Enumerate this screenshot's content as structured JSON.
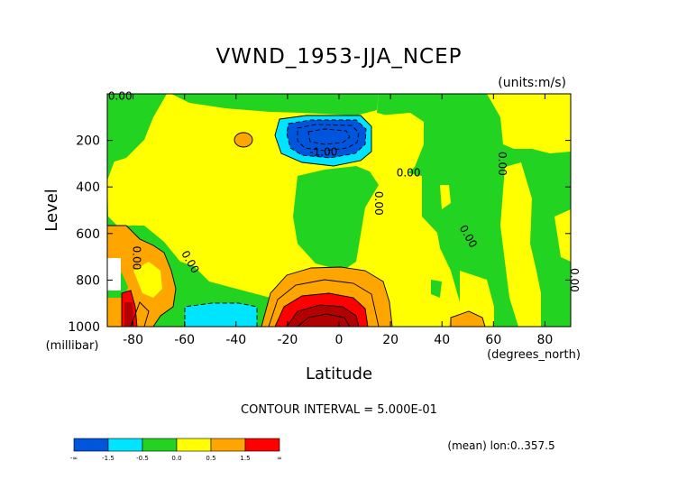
{
  "chart_data": {
    "type": "heatmap",
    "title": "VWND_1953-JJA_NCEP",
    "units_label": "(units:m/s)",
    "xlabel": "Latitude",
    "x_units_label": "(degrees_north)",
    "ylabel": "Level",
    "y_units_label": "(millibar)",
    "xlim": [
      -90,
      90
    ],
    "ylim": [
      1000,
      0
    ],
    "x_ticks": [
      -80,
      -60,
      -40,
      -20,
      0,
      20,
      40,
      60,
      80
    ],
    "y_ticks": [
      200,
      400,
      600,
      800,
      1000
    ],
    "contour_interval_label": "CONTOUR INTERVAL = 5.000E-01",
    "footnote": "(mean) lon:0..357.5",
    "contour_labels": [
      {
        "text": "0.00",
        "lat": -85,
        "lev": 25,
        "rotate": 0
      },
      {
        "text": "-1.00",
        "lat": -6,
        "lev": 265,
        "rotate": 0
      },
      {
        "text": "0.00",
        "lat": 27,
        "lev": 355,
        "rotate": 0
      },
      {
        "text": "0.00",
        "lat": 14,
        "lev": 470,
        "rotate": 90
      },
      {
        "text": "0.00",
        "lat": 62,
        "lev": 300,
        "rotate": 90
      },
      {
        "text": "0.00",
        "lat": 49,
        "lev": 620,
        "rotate": 60
      },
      {
        "text": "0.00",
        "lat": -80,
        "lev": 705,
        "rotate": 90
      },
      {
        "text": "0.00",
        "lat": -59,
        "lev": 730,
        "rotate": 60
      },
      {
        "text": "0.00",
        "lat": 90,
        "lev": 800,
        "rotate": 90
      }
    ],
    "colorbar": {
      "bins": [
        {
          "color": "#0055dd",
          "from": "-∞",
          "to": "-1.5"
        },
        {
          "color": "#00e5ff",
          "from": "-1.5",
          "to": "-0.5"
        },
        {
          "color": "#22d322",
          "from": "-0.5",
          "to": "0.0"
        },
        {
          "color": "#ffff00",
          "from": "0.0",
          "to": "0.5"
        },
        {
          "color": "#ffa500",
          "from": "0.5",
          "to": "1.5"
        },
        {
          "color": "#ff0000",
          "from": "1.5",
          "to": "∞"
        }
      ],
      "tick_labels": [
        "-∞",
        "-1.5",
        "-0.5",
        "0.0",
        "0.5",
        "1.5",
        "∞"
      ]
    },
    "fields": {
      "blue": "#0055dd",
      "cyan": "#00e5ff",
      "green": "#22d322",
      "yellow": "#ffff00",
      "orange": "#ffa500",
      "red": "#ff0000",
      "darkred": "#b30000"
    }
  }
}
